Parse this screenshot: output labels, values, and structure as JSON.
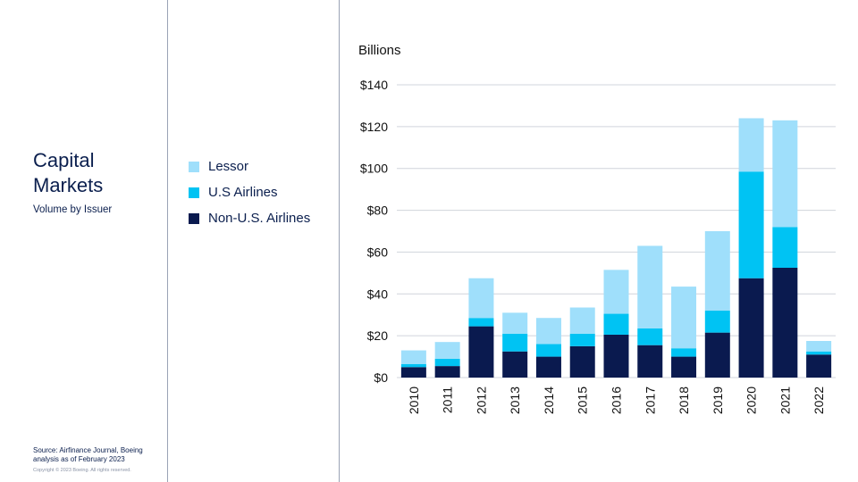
{
  "slide": {
    "title": "Capital Markets",
    "subtitle": "Volume by Issuer",
    "source": "Source: Airfinance Journal, Boeing analysis as of February 2023",
    "copyright": "Copyright © 2023 Boeing. All rights reserved."
  },
  "colors": {
    "lessor": "#9fdffb",
    "us_airlines": "#00c3f3",
    "non_us_airlines": "#0a1a4f",
    "grid": "#d0d4dc",
    "divider": "#9aa3b5"
  },
  "chart_data": {
    "type": "bar",
    "stacked": true,
    "title": "",
    "ylabel": "Billions",
    "xlabel": "",
    "ylim": [
      0,
      140
    ],
    "yticks": [
      0,
      20,
      40,
      60,
      80,
      100,
      120,
      140
    ],
    "ytick_labels": [
      "$0",
      "$20",
      "$40",
      "$60",
      "$80",
      "$100",
      "$120",
      "$140"
    ],
    "grid": true,
    "legend_position": "left",
    "categories": [
      "2010",
      "2011",
      "2012",
      "2013",
      "2014",
      "2015",
      "2016",
      "2017",
      "2018",
      "2019",
      "2020",
      "2021",
      "2022"
    ],
    "series": [
      {
        "name": "Non-U.S. Airlines",
        "color_key": "non_us_airlines",
        "values": [
          5,
          5.5,
          24.5,
          12.5,
          10,
          15,
          20.5,
          15.5,
          10,
          21.5,
          47.5,
          52.5,
          11
        ]
      },
      {
        "name": "U.S Airlines",
        "color_key": "us_airlines",
        "values": [
          1.5,
          3.5,
          4,
          8.5,
          6,
          6,
          10,
          8,
          4,
          10.5,
          51,
          19.5,
          1.5
        ]
      },
      {
        "name": "Lessor",
        "color_key": "lessor",
        "values": [
          6.5,
          8,
          19,
          10,
          12.5,
          12.5,
          21,
          39.5,
          29.5,
          38,
          25.5,
          51,
          5
        ]
      }
    ]
  },
  "legend": [
    {
      "label": "Lessor",
      "color_key": "lessor"
    },
    {
      "label": "U.S Airlines",
      "color_key": "us_airlines"
    },
    {
      "label": "Non-U.S. Airlines",
      "color_key": "non_us_airlines"
    }
  ]
}
